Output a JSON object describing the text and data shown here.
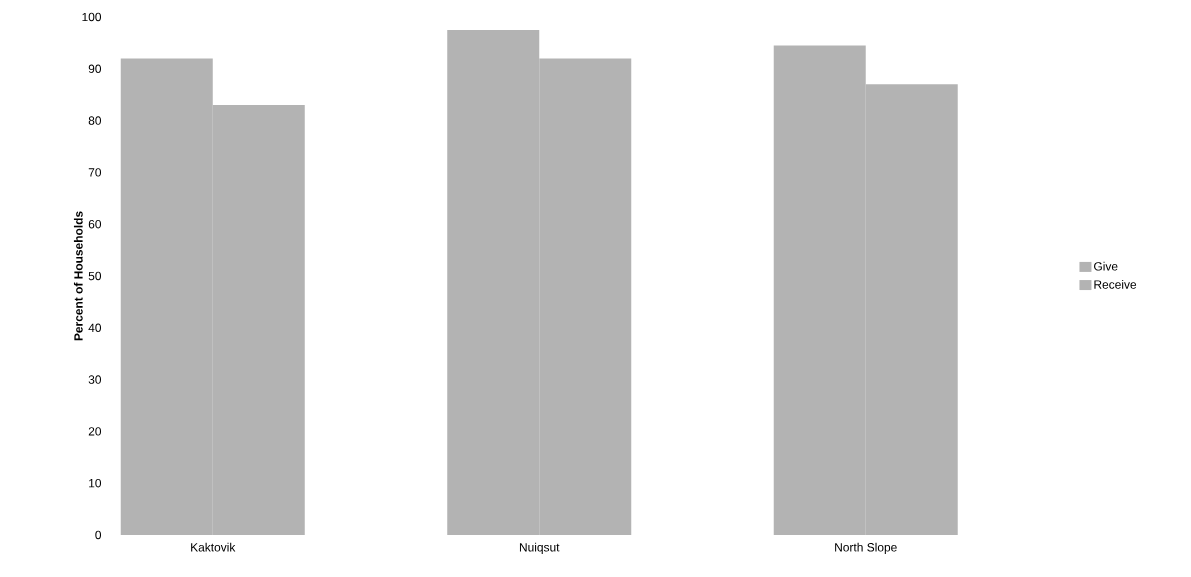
{
  "chart_data": {
    "type": "bar",
    "ylabel": "Percent of Households",
    "categories": [
      "Kaktovik",
      "Nuiqsut",
      "North Slope"
    ],
    "series": [
      {
        "name": "Give",
        "color": "#b3b3b3",
        "values": [
          92,
          97.5,
          94.5
        ]
      },
      {
        "name": "Receive",
        "color": "#b3b3b3",
        "values": [
          83,
          92,
          87
        ]
      }
    ],
    "ylim": [
      0,
      100
    ],
    "yticks": [
      0,
      10,
      20,
      30,
      40,
      50,
      60,
      70,
      80,
      90,
      100
    ],
    "legend": "right"
  }
}
